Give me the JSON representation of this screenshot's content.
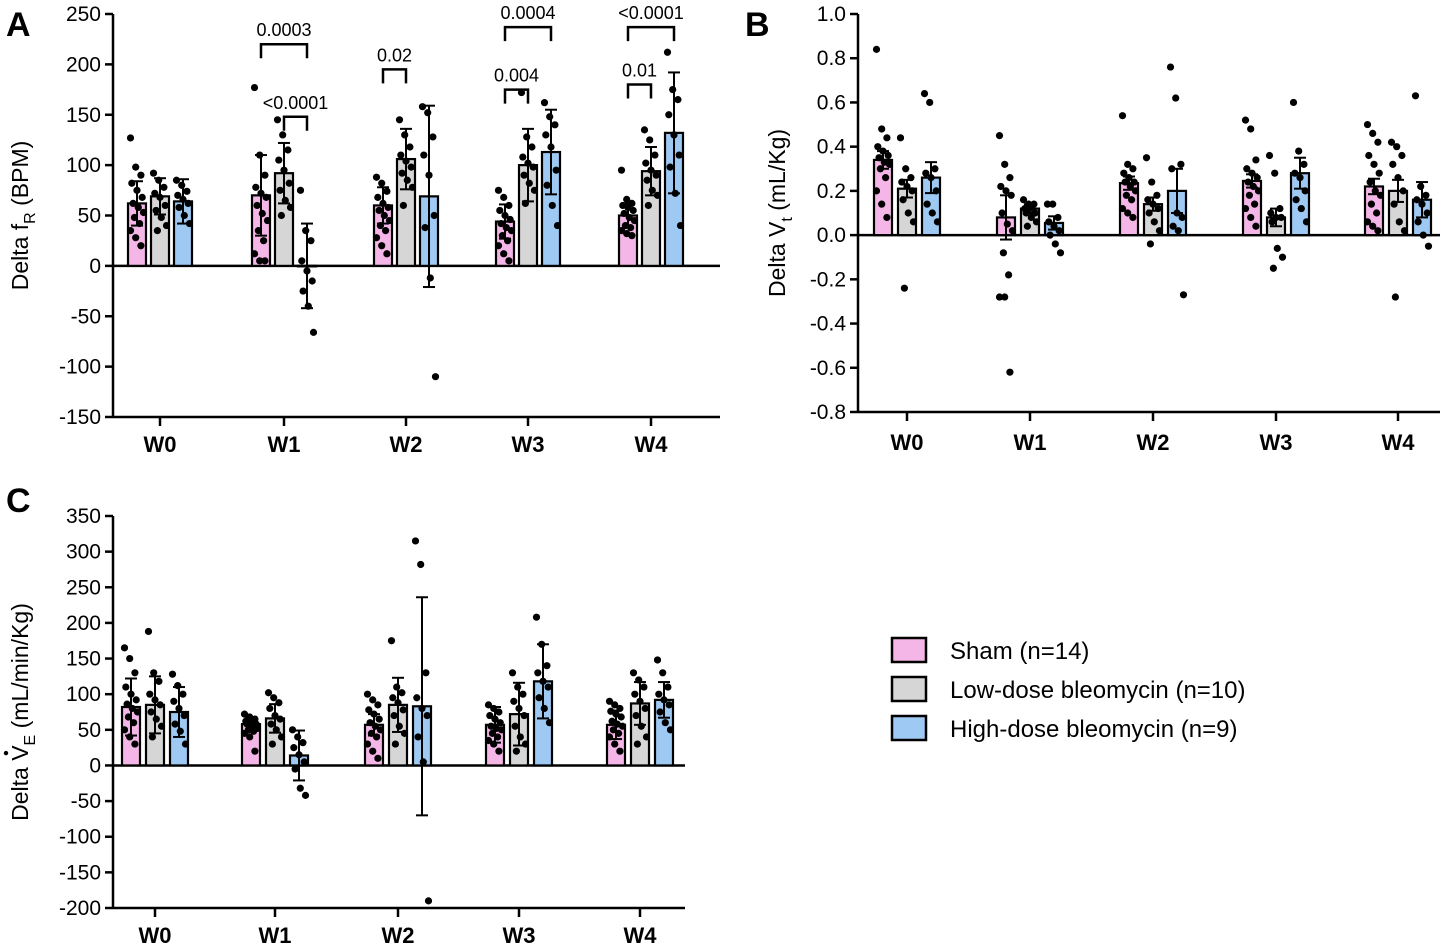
{
  "legend": [
    {
      "label": "Sham (n=14)",
      "color": "#f4b6e6"
    },
    {
      "label": "Low-dose bleomycin (n=10)",
      "color": "#d6d6d6"
    },
    {
      "label": "High-dose bleomycin (n=9)",
      "color": "#9ec9f3"
    }
  ],
  "chart_data": [
    {
      "panel": "A",
      "type": "bar",
      "ylabel_main": "Delta f",
      "ylabel_sub": "R",
      "ylabel_tail": " (BPM)",
      "ylim": [
        -150,
        250
      ],
      "yticks": [
        250,
        200,
        150,
        100,
        50,
        0,
        -50,
        -100,
        -150
      ],
      "categories": [
        "W0",
        "W1",
        "W2",
        "W3",
        "W4"
      ],
      "series": [
        {
          "name": "Sham (n=14)",
          "values": [
            62,
            70,
            60,
            44,
            50
          ],
          "error": [
            22,
            40,
            18,
            17,
            12
          ]
        },
        {
          "name": "Low-dose bleomycin (n=10)",
          "values": [
            69,
            92,
            106,
            100,
            94
          ],
          "error": [
            18,
            30,
            30,
            36,
            24
          ]
        },
        {
          "name": "High-dose bleomycin (n=9)",
          "values": [
            64,
            0,
            69,
            113,
            132
          ],
          "error": [
            22,
            42,
            90,
            42,
            60
          ]
        }
      ],
      "points": [
        [
          [
            127,
            98,
            90,
            82,
            75,
            68,
            62,
            58,
            53,
            48,
            42,
            35,
            28,
            20
          ],
          [
            92,
            85,
            78,
            72,
            68,
            60,
            55,
            48,
            40,
            35
          ],
          [
            85,
            80,
            74,
            70,
            66,
            62,
            58,
            50,
            42
          ]
        ],
        [
          [
            177,
            110,
            90,
            78,
            72,
            68,
            60,
            52,
            45,
            35,
            25,
            12,
            5,
            5
          ],
          [
            145,
            130,
            115,
            105,
            95,
            82,
            75,
            65,
            58,
            50
          ],
          [
            75,
            35,
            25,
            5,
            -5,
            -15,
            -25,
            -40,
            -66
          ]
        ],
        [
          [
            88,
            82,
            74,
            68,
            62,
            58,
            55,
            50,
            45,
            40,
            35,
            28,
            20,
            12
          ],
          [
            145,
            130,
            118,
            110,
            104,
            98,
            92,
            85,
            78,
            60
          ],
          [
            158,
            152,
            128,
            110,
            90,
            50,
            38,
            -12,
            -110
          ]
        ],
        [
          [
            75,
            68,
            60,
            55,
            50,
            46,
            42,
            38,
            35,
            30,
            25,
            20,
            12,
            5
          ],
          [
            172,
            128,
            118,
            108,
            102,
            98,
            90,
            82,
            75,
            62
          ],
          [
            162,
            148,
            140,
            130,
            118,
            95,
            80,
            60,
            40
          ]
        ],
        [
          [
            95,
            66,
            62,
            60,
            58,
            55,
            52,
            48,
            45,
            40,
            38,
            35,
            32,
            30
          ],
          [
            135,
            125,
            110,
            102,
            95,
            90,
            85,
            75,
            70,
            60
          ],
          [
            212,
            175,
            165,
            150,
            130,
            110,
            98,
            72,
            40
          ]
        ]
      ],
      "brackets": [
        {
          "from": [
            1,
            0
          ],
          "to": [
            1,
            2
          ],
          "value": 220,
          "label": "0.0003"
        },
        {
          "from": [
            1,
            1
          ],
          "to": [
            1,
            2
          ],
          "value": 148,
          "label": "<0.0001"
        },
        {
          "from": [
            2,
            0
          ],
          "to": [
            2,
            1
          ],
          "value": 195,
          "label": "0.02"
        },
        {
          "from": [
            3,
            0
          ],
          "to": [
            3,
            2
          ],
          "value": 237,
          "label": "0.0004"
        },
        {
          "from": [
            3,
            0
          ],
          "to": [
            3,
            1
          ],
          "value": 175,
          "label": "0.004"
        },
        {
          "from": [
            4,
            0
          ],
          "to": [
            4,
            2
          ],
          "value": 237,
          "label": "<0.0001"
        },
        {
          "from": [
            4,
            0
          ],
          "to": [
            4,
            1
          ],
          "value": 180,
          "label": "0.01"
        }
      ]
    },
    {
      "panel": "B",
      "type": "bar",
      "ylabel_main": "Delta V",
      "ylabel_sub": "t",
      "ylabel_tail": " (mL/Kg)",
      "ylim": [
        -0.8,
        1.0
      ],
      "yticks": [
        1.0,
        0.8,
        0.6,
        0.4,
        0.2,
        0.0,
        -0.2,
        -0.4,
        -0.6,
        -0.8
      ],
      "categories": [
        "W0",
        "W1",
        "W2",
        "W3",
        "W4"
      ],
      "series": [
        {
          "name": "Sham (n=14)",
          "values": [
            0.34,
            0.08,
            0.235,
            0.245,
            0.22
          ],
          "error": [
            0.04,
            0.1,
            0.03,
            0.03,
            0.035
          ]
        },
        {
          "name": "Low-dose bleomycin (n=10)",
          "values": [
            0.21,
            0.12,
            0.14,
            0.08,
            0.2
          ],
          "error": [
            0.04,
            0.02,
            0.03,
            0.04,
            0.05
          ]
        },
        {
          "name": "High-dose bleomycin (n=9)",
          "values": [
            0.26,
            0.055,
            0.2,
            0.28,
            0.16
          ],
          "error": [
            0.07,
            0.03,
            0.1,
            0.07,
            0.08
          ]
        }
      ],
      "points": [
        [
          [
            0.84,
            0.48,
            0.44,
            0.4,
            0.38,
            0.36,
            0.35,
            0.33,
            0.32,
            0.3,
            0.26,
            0.2,
            0.14,
            0.08
          ],
          [
            0.44,
            0.3,
            0.26,
            0.24,
            0.22,
            0.2,
            0.16,
            0.1,
            0.06,
            -0.24
          ],
          [
            0.64,
            0.6,
            0.3,
            0.28,
            0.26,
            0.2,
            0.14,
            0.1,
            0.06
          ]
        ],
        [
          [
            0.45,
            0.32,
            0.26,
            0.22,
            0.2,
            0.18,
            0.1,
            0.05,
            0.02,
            -0.08,
            -0.18,
            -0.28,
            -0.28,
            -0.62
          ],
          [
            0.16,
            0.14,
            0.14,
            0.12,
            0.12,
            0.1,
            0.1,
            0.08,
            0.06,
            0.04
          ],
          [
            0.14,
            0.14,
            0.08,
            0.06,
            0.04,
            0.02,
            0.0,
            -0.04,
            -0.08
          ]
        ],
        [
          [
            0.54,
            0.32,
            0.3,
            0.28,
            0.26,
            0.24,
            0.24,
            0.22,
            0.2,
            0.18,
            0.16,
            0.12,
            0.1,
            0.08
          ],
          [
            0.35,
            0.24,
            0.18,
            0.16,
            0.14,
            0.12,
            0.1,
            0.06,
            0.02,
            -0.04
          ],
          [
            0.76,
            0.62,
            0.32,
            0.3,
            0.1,
            0.08,
            0.04,
            0.02,
            -0.27
          ]
        ],
        [
          [
            0.52,
            0.48,
            0.34,
            0.3,
            0.28,
            0.26,
            0.24,
            0.22,
            0.2,
            0.18,
            0.14,
            0.12,
            0.08,
            0.04
          ],
          [
            0.36,
            0.28,
            0.12,
            0.1,
            0.08,
            0.08,
            0.06,
            -0.06,
            -0.1,
            -0.15
          ],
          [
            0.6,
            0.38,
            0.32,
            0.28,
            0.26,
            0.2,
            0.16,
            0.12,
            0.06
          ]
        ],
        [
          [
            0.5,
            0.46,
            0.42,
            0.36,
            0.32,
            0.28,
            0.24,
            0.2,
            0.18,
            0.14,
            0.1,
            0.06,
            0.04,
            0.02
          ],
          [
            0.42,
            0.4,
            0.36,
            0.32,
            0.26,
            0.2,
            0.14,
            0.06,
            0.02,
            -0.28
          ],
          [
            0.63,
            0.22,
            0.18,
            0.16,
            0.14,
            0.1,
            0.06,
            0.0,
            -0.05
          ]
        ]
      ],
      "brackets": []
    },
    {
      "panel": "C",
      "type": "bar",
      "ylabel_main": "Delta V",
      "ylabel_sub": "E",
      "ylabel_tail": " (mL/min/Kg)",
      "ylim": [
        -200,
        350
      ],
      "yticks": [
        350,
        300,
        250,
        200,
        150,
        100,
        50,
        0,
        -50,
        -100,
        -150,
        -200
      ],
      "categories": [
        "W0",
        "W1",
        "W2",
        "W3",
        "W4"
      ],
      "series": [
        {
          "name": "Sham (n=14)",
          "values": [
            82,
            58,
            57,
            57,
            57
          ],
          "error": [
            40,
            10,
            15,
            25,
            20
          ]
        },
        {
          "name": "Low-dose bleomycin (n=10)",
          "values": [
            85,
            66,
            85,
            72,
            87
          ],
          "error": [
            40,
            20,
            38,
            44,
            30
          ]
        },
        {
          "name": "High-dose bleomycin (n=9)",
          "values": [
            75,
            14,
            83,
            118,
            92
          ],
          "error": [
            35,
            35,
            153,
            52,
            25
          ]
        }
      ],
      "points": [
        [
          [
            165,
            150,
            130,
            110,
            100,
            92,
            86,
            80,
            75,
            68,
            60,
            50,
            40,
            30
          ],
          [
            188,
            130,
            118,
            100,
            92,
            85,
            75,
            65,
            55,
            40
          ],
          [
            128,
            112,
            100,
            90,
            80,
            70,
            58,
            48,
            30
          ]
        ],
        [
          [
            72,
            68,
            65,
            62,
            60,
            58,
            58,
            55,
            52,
            50,
            48,
            45,
            40,
            20
          ],
          [
            102,
            95,
            88,
            80,
            70,
            65,
            58,
            50,
            40,
            30
          ],
          [
            50,
            40,
            32,
            25,
            15,
            5,
            -5,
            -32,
            -42
          ]
        ],
        [
          [
            100,
            92,
            85,
            78,
            72,
            65,
            60,
            55,
            50,
            45,
            40,
            30,
            20,
            10
          ],
          [
            175,
            110,
            102,
            95,
            88,
            78,
            70,
            55,
            45,
            30
          ],
          [
            315,
            282,
            130,
            95,
            80,
            70,
            40,
            5,
            -190
          ]
        ],
        [
          [
            85,
            80,
            75,
            70,
            65,
            60,
            55,
            52,
            50,
            45,
            40,
            35,
            30,
            20
          ],
          [
            130,
            110,
            100,
            90,
            80,
            70,
            55,
            40,
            30,
            20
          ],
          [
            208,
            170,
            140,
            130,
            118,
            110,
            95,
            80,
            60
          ]
        ],
        [
          [
            90,
            85,
            80,
            76,
            72,
            68,
            62,
            58,
            55,
            50,
            45,
            40,
            30,
            20
          ],
          [
            130,
            120,
            110,
            100,
            90,
            80,
            70,
            55,
            40,
            30
          ],
          [
            148,
            130,
            110,
            100,
            92,
            85,
            75,
            60,
            50
          ]
        ]
      ],
      "brackets": []
    }
  ]
}
